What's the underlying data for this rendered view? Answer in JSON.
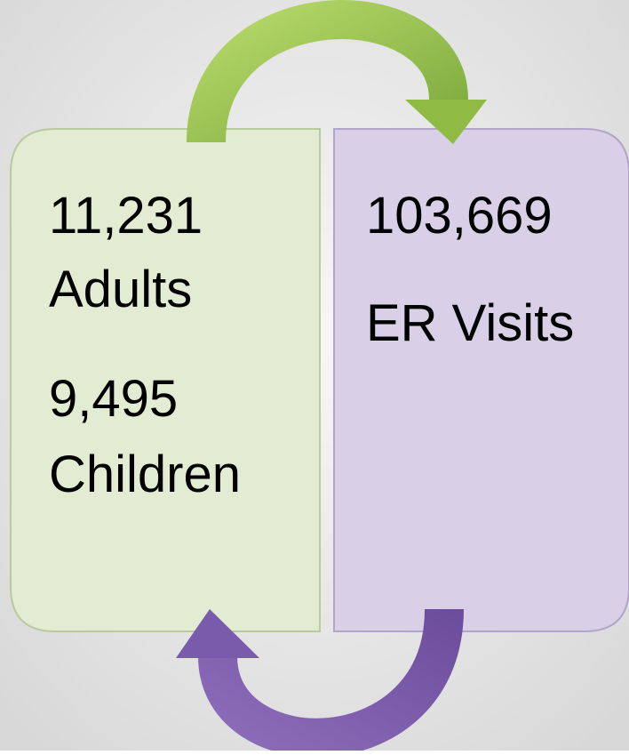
{
  "boxes": [
    {
      "lines": [
        "11,231",
        "Adults",
        "9,495",
        "Children"
      ]
    },
    {
      "lines": [
        "103,669",
        "ER Visits"
      ]
    }
  ]
}
